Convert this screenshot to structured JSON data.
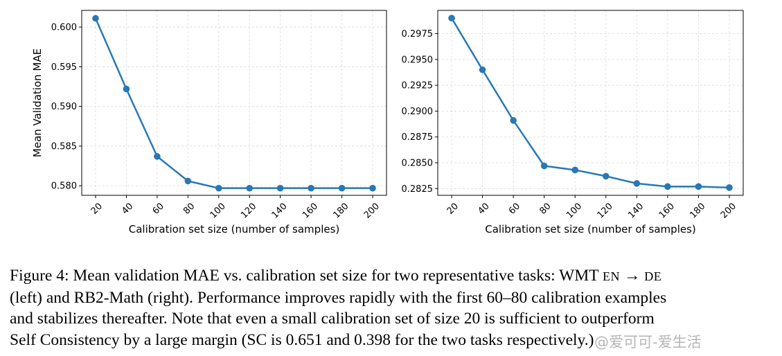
{
  "chart_data": [
    {
      "type": "line",
      "title": "",
      "xlabel": "Calibration set size (number of samples)",
      "ylabel": "Mean Validation MAE",
      "x": [
        20,
        40,
        60,
        80,
        100,
        120,
        140,
        160,
        180,
        200
      ],
      "series": [
        {
          "name": "Mean Validation MAE",
          "values": [
            0.6011,
            0.5922,
            0.5837,
            0.5806,
            0.5797,
            0.5797,
            0.5797,
            0.5797,
            0.5797,
            0.5797
          ]
        }
      ],
      "xticks": [
        "20",
        "40",
        "60",
        "80",
        "100",
        "120",
        "140",
        "160",
        "180",
        "200"
      ],
      "yticks": [
        0.58,
        0.585,
        0.59,
        0.595,
        0.6
      ],
      "ytick_labels": [
        "0.580",
        "0.585",
        "0.590",
        "0.595",
        "0.600"
      ],
      "ylim": [
        0.5788,
        0.6021
      ],
      "xlim": [
        11,
        209
      ],
      "grid": true,
      "color": "#2878b5"
    },
    {
      "type": "line",
      "title": "",
      "xlabel": "Calibration set size (number of samples)",
      "ylabel": "",
      "x": [
        20,
        40,
        60,
        80,
        100,
        120,
        140,
        160,
        180,
        200
      ],
      "series": [
        {
          "name": "Mean Validation MAE",
          "values": [
            0.299,
            0.294,
            0.2891,
            0.2847,
            0.2843,
            0.2837,
            0.283,
            0.2827,
            0.2827,
            0.2826
          ]
        }
      ],
      "xticks": [
        "20",
        "40",
        "60",
        "80",
        "100",
        "120",
        "140",
        "160",
        "180",
        "200"
      ],
      "yticks": [
        0.2825,
        0.285,
        0.2875,
        0.29,
        0.2925,
        0.295,
        0.2975
      ],
      "ytick_labels": [
        "0.2825",
        "0.2850",
        "0.2875",
        "0.2900",
        "0.2925",
        "0.2950",
        "0.2975"
      ],
      "ylim": [
        0.28185,
        0.29975
      ],
      "xlim": [
        11,
        209
      ],
      "grid": true,
      "color": "#2878b5"
    }
  ],
  "caption": {
    "line1_a": "Figure 4: Mean validation MAE vs. calibration set size for two representative tasks: WMT ",
    "line1_b": "EN",
    "line1_c": " → ",
    "line1_d": "DE",
    "line2": "(left) and RB2-Math (right). Performance improves rapidly with the first 60–80 calibration examples",
    "line3": "and stabilizes thereafter. Note that even a small calibration set of size 20 is sufficient to outperform",
    "line4": "Self Consistency by a large margin (SC is 0.651 and 0.398 for the two tasks respectively.)"
  },
  "watermark": "@爱可可-爱生活"
}
